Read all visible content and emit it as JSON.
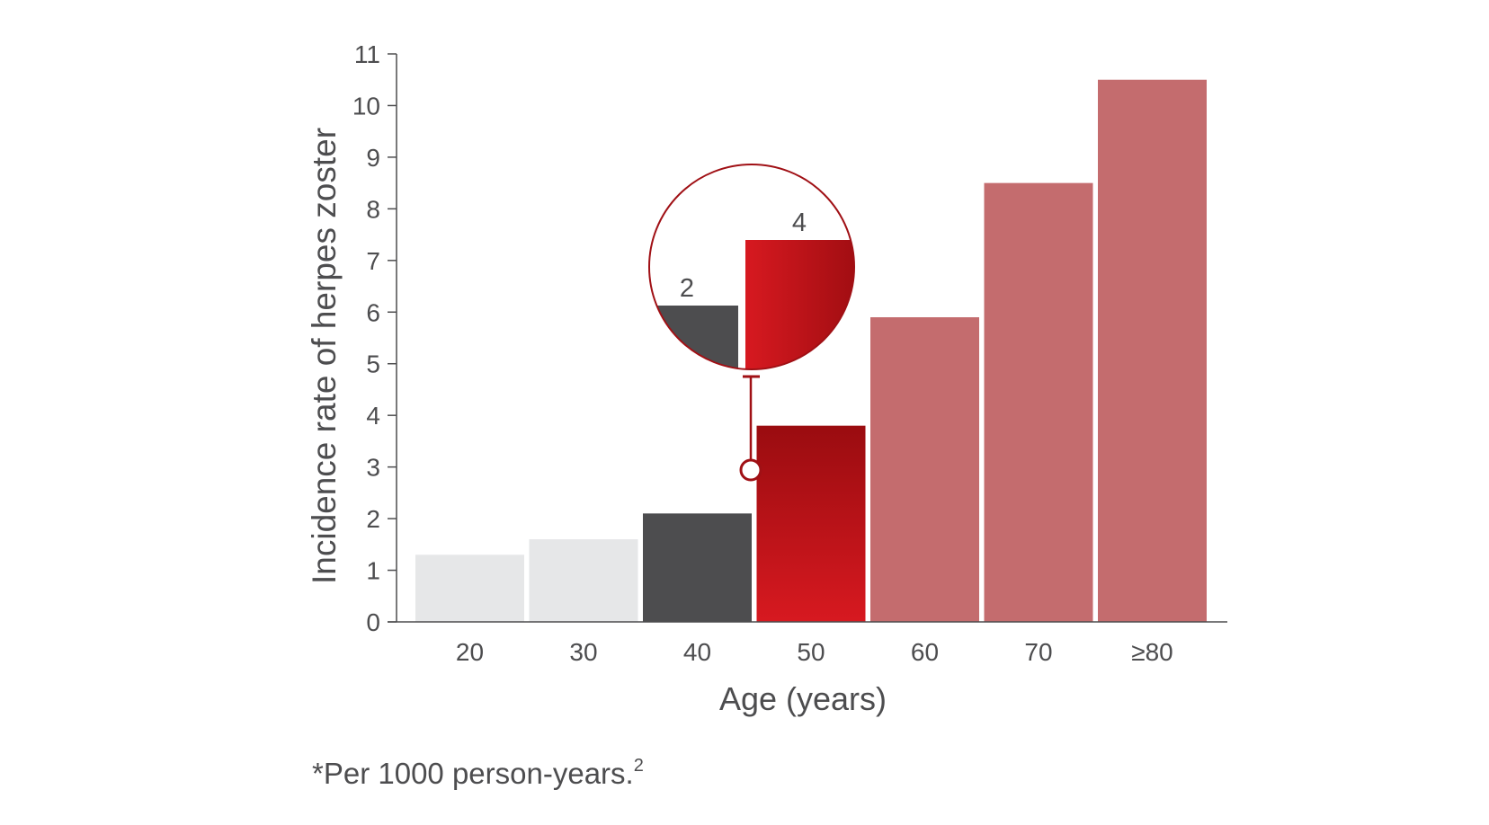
{
  "chart_data": {
    "type": "bar",
    "categories": [
      "20",
      "30",
      "40",
      "50",
      "60",
      "70",
      "≥80"
    ],
    "values": [
      1.3,
      1.6,
      2.1,
      3.8,
      5.9,
      8.5,
      10.5
    ],
    "xlabel": "Age (years)",
    "ylabel": "Incidence rate of herpes zoster",
    "ylim": [
      0,
      11
    ],
    "yticks": [
      "0",
      "1",
      "2",
      "3",
      "4",
      "5",
      "6",
      "7",
      "8",
      "9",
      "10",
      "11"
    ],
    "grid": false,
    "legend": "none",
    "bar_colors": [
      "#e6e7e8",
      "#e6e7e8",
      "#4d4d4f",
      "#c8161e",
      "#c46c6e",
      "#c46c6e",
      "#c46c6e"
    ],
    "inset": {
      "description_labels": [
        "2",
        "4"
      ],
      "colors": {
        "outline": "#a01015",
        "dark": "#4d4d4f",
        "red_start": "#d71920",
        "red_end": "#9a0c10"
      }
    }
  },
  "footnote": {
    "text": "*Per 1000 person-years.",
    "superscript": "2"
  }
}
